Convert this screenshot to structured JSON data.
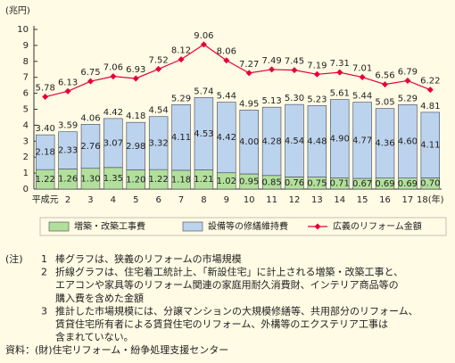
{
  "chart_data": {
    "type": "bar",
    "y_label": "(兆円)",
    "categories": [
      "平成元",
      "2",
      "3",
      "4",
      "5",
      "6",
      "7",
      "8",
      "9",
      "10",
      "11",
      "12",
      "13",
      "14",
      "15",
      "16",
      "17",
      "18(年)"
    ],
    "series": [
      {
        "name": "増築・改築工事費",
        "type": "bar",
        "color": "#b2e09c",
        "values": [
          1.22,
          1.26,
          1.3,
          1.35,
          1.2,
          1.22,
          1.18,
          1.21,
          1.02,
          0.95,
          0.85,
          0.76,
          0.75,
          0.71,
          0.67,
          0.69,
          0.69,
          0.7
        ],
        "value_labels": [
          "1.22",
          "1.26",
          "1.30",
          "1.35",
          "1.20",
          "1.22",
          "1.18",
          "1.21",
          "1.02",
          "0.95",
          "0.85",
          "0.76",
          "0.75",
          "0.71",
          "0.67",
          "0.69",
          "0.69",
          "0.70"
        ]
      },
      {
        "name": "設備等の修繕維持費",
        "type": "bar",
        "color": "#bcd3ee",
        "values": [
          2.18,
          2.33,
          2.76,
          3.07,
          2.98,
          3.32,
          4.11,
          4.53,
          4.42,
          4.0,
          4.28,
          4.54,
          4.48,
          4.9,
          4.77,
          4.36,
          4.6,
          4.11
        ],
        "value_labels": [
          "2.18",
          "2.33",
          "2.76",
          "3.07",
          "2.98",
          "3.32",
          "4.11",
          "4.53",
          "4.42",
          "4.00",
          "4.28",
          "4.54",
          "4.48",
          "4.90",
          "4.77",
          "4.36",
          "4.60",
          "4.11"
        ]
      },
      {
        "name": "広義のリフォーム金額",
        "type": "line",
        "color": "#e6003a",
        "values": [
          5.78,
          6.13,
          6.75,
          7.06,
          6.93,
          7.52,
          8.12,
          9.06,
          8.06,
          7.27,
          7.49,
          7.45,
          7.19,
          7.31,
          7.01,
          6.56,
          6.79,
          6.22
        ]
      }
    ],
    "total_labels": [
      "3.40",
      "3.59",
      "4.06",
      "4.42",
      "4.18",
      "4.54",
      "5.29",
      "5.74",
      "5.44",
      "4.95",
      "5.13",
      "5.30",
      "5.23",
      "5.61",
      "5.44",
      "5.05",
      "5.29",
      "4.81"
    ],
    "ylim": [
      0,
      10
    ],
    "yticks": [
      0,
      1,
      2,
      3,
      4,
      5,
      6,
      7,
      8,
      9,
      10
    ]
  },
  "notes": {
    "label": "(注)",
    "items": [
      {
        "number": "1",
        "lines": [
          "棒グラフは、狭義のリフォームの市場規模"
        ]
      },
      {
        "number": "2",
        "lines": [
          "折線グラフは、住宅着工統計上、「新設住宅」に計上される増築・改築工事と、",
          "エアコンや家具等のリフォーム関連の家庭用耐久消費財、インテリア商品等の",
          "購入費を含めた金額"
        ]
      },
      {
        "number": "3",
        "lines": [
          "推計した市場規模には、分譲マンションの大規模修繕等、共用部分のリフォーム、",
          "賃貸住宅所有者による賃貸住宅のリフォーム、外構等のエクステリア工事は",
          "含まれていない。"
        ]
      }
    ]
  },
  "source": "資料：(財)住宅リフォーム・紛争処理支援センター"
}
